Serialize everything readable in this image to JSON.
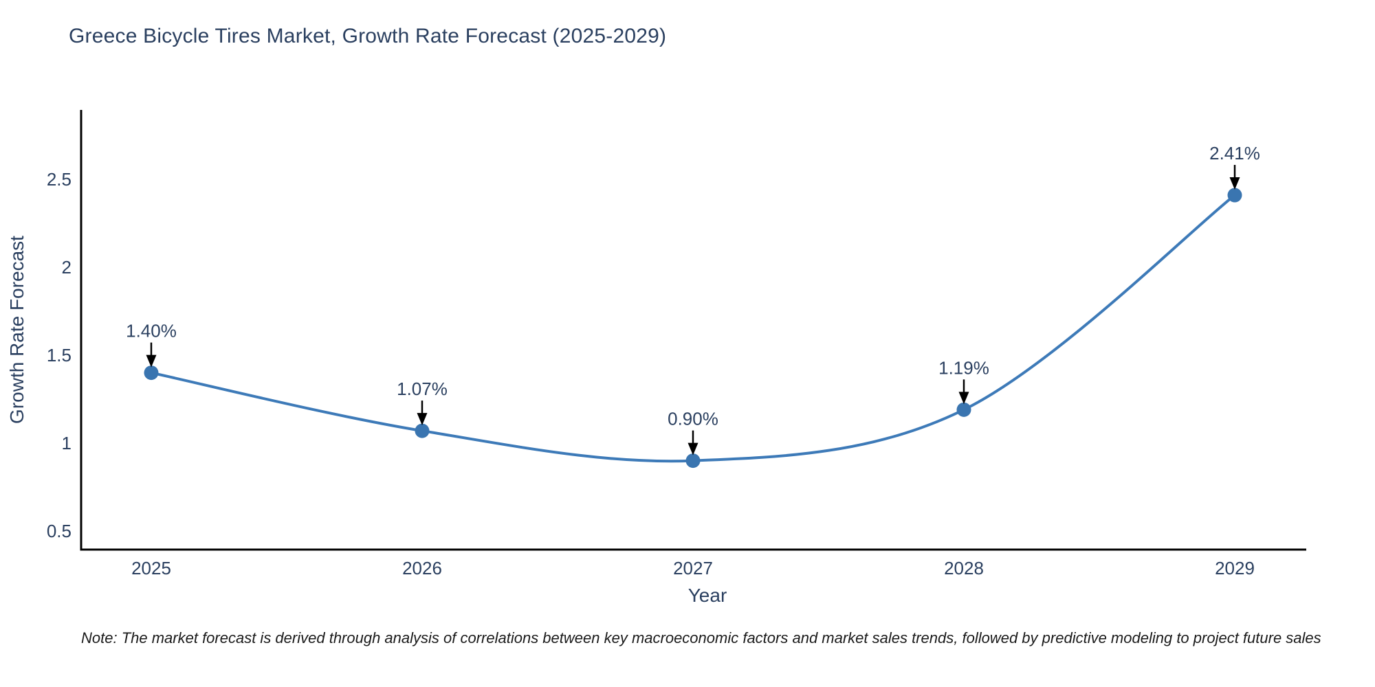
{
  "title": "Greece Bicycle Tires Market, Growth Rate Forecast (2025-2029)",
  "note": "Note: The market forecast is derived through analysis of correlations between key macroeconomic factors and market sales trends, followed by predictive modeling to project future sales",
  "colors": {
    "title_text": "#2a3f5f",
    "tick_text": "#2a3f5f",
    "annotation_text": "#2a3f5f",
    "line": "#3d7ab8",
    "marker": "#3a75b0",
    "axis_line": "#000000",
    "arrow": "#000000",
    "background": "#ffffff"
  },
  "chart_data": {
    "type": "line",
    "title": "Greece Bicycle Tires Market, Growth Rate Forecast (2025-2029)",
    "x": [
      2025,
      2026,
      2027,
      2028,
      2029
    ],
    "values": [
      1.4,
      1.07,
      0.9,
      1.19,
      2.41
    ],
    "point_labels": [
      "1.40%",
      "1.07%",
      "0.90%",
      "1.19%",
      "2.41%"
    ],
    "xlabel": "Year",
    "ylabel": "Growth Rate Forecast",
    "xtick_labels": [
      "2025",
      "2026",
      "2027",
      "2028",
      "2029"
    ],
    "ytick_labels": [
      "0.5",
      "1",
      "1.5",
      "2",
      "2.5"
    ],
    "yticks": [
      0.5,
      1,
      1.5,
      2,
      2.5
    ],
    "ylim": [
      0.39,
      2.91
    ],
    "line_shape": "spline",
    "grid": false,
    "legend": "none",
    "annotations": "value labels with down arrows above each point"
  }
}
